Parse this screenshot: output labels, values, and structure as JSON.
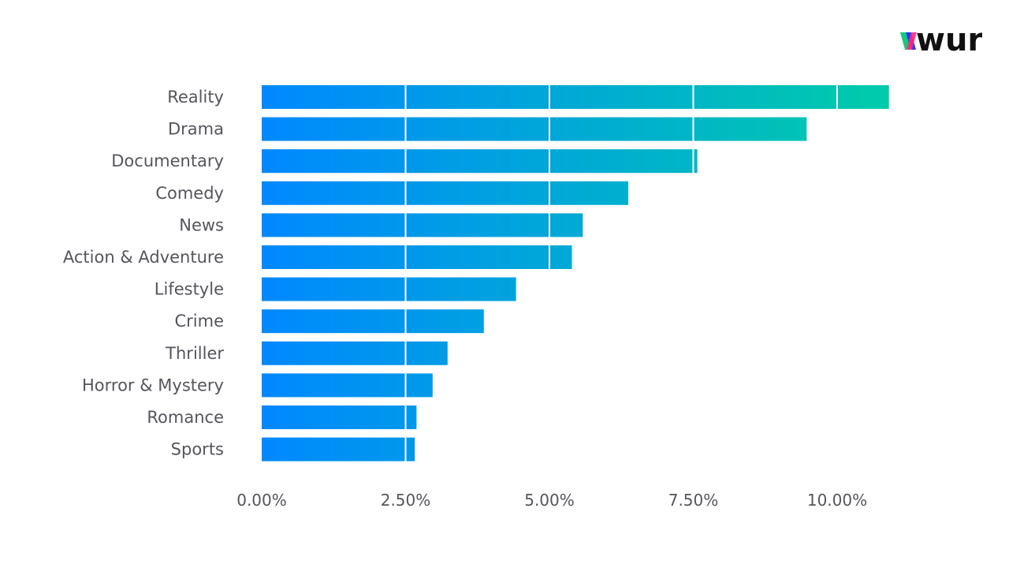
{
  "brand": {
    "name": "wurl",
    "colors": [
      "#16c97a",
      "#1f3cff",
      "#ff2a7a"
    ],
    "text_color": "#111111"
  },
  "chart_data": {
    "type": "bar",
    "orientation": "horizontal",
    "title": "",
    "xlabel": "",
    "ylabel": "",
    "categories": [
      "Reality",
      "Drama",
      "Documentary",
      "Comedy",
      "News",
      "Action & Adventure",
      "Lifestyle",
      "Crime",
      "Thriller",
      "Horror & Mystery",
      "Romance",
      "Sports"
    ],
    "values": [
      10.9,
      9.47,
      7.57,
      6.37,
      5.58,
      5.39,
      4.42,
      3.86,
      3.23,
      2.97,
      2.69,
      2.66
    ],
    "unit": "%",
    "xlim": [
      0,
      12.5
    ],
    "xticks": [
      0,
      2.5,
      5,
      7.5,
      10
    ],
    "xtick_labels": [
      "0.00%",
      "2.50%",
      "5.00%",
      "7.50%",
      "10.00%"
    ],
    "grid": "vertical white lines over bars",
    "gradient": [
      "#0088ff",
      "#00ccaa"
    ]
  }
}
